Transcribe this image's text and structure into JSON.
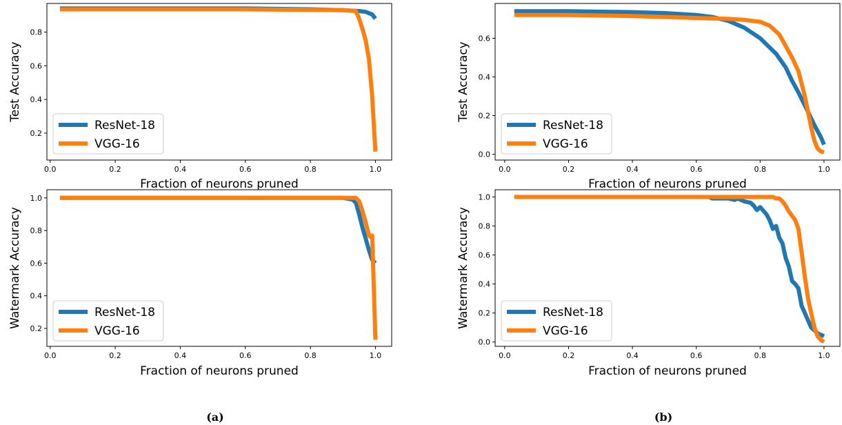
{
  "colors": {
    "resnet": "#1f77b4",
    "vgg": "#ff7f0e",
    "axis": "#000000"
  },
  "captions": [
    "(a)",
    "(b)"
  ],
  "chart_data": [
    {
      "type": "line",
      "xlabel": "Fraction of neurons pruned",
      "ylabel": "Test Accuracy",
      "xlim": [
        -0.01,
        1.05
      ],
      "ylim": [
        0.04,
        0.97
      ],
      "xticks": [
        0.0,
        0.2,
        0.4,
        0.6,
        0.8,
        1.0
      ],
      "xtick_labels": [
        "0.0",
        "0.2",
        "0.4",
        "0.6",
        "0.8",
        "1.0"
      ],
      "yticks": [
        0.2,
        0.4,
        0.6,
        0.8
      ],
      "ytick_labels": [
        "0.2",
        "0.4",
        "0.6",
        "0.8"
      ],
      "legend": {
        "position": "lower-left"
      },
      "series": [
        {
          "name": "ResNet-18",
          "x": [
            0.03,
            0.2,
            0.4,
            0.6,
            0.8,
            0.9,
            0.95,
            0.97,
            0.99,
            1.0
          ],
          "y": [
            0.94,
            0.94,
            0.94,
            0.94,
            0.935,
            0.93,
            0.925,
            0.92,
            0.905,
            0.88
          ]
        },
        {
          "name": "VGG-16",
          "x": [
            0.03,
            0.2,
            0.4,
            0.6,
            0.8,
            0.9,
            0.94,
            0.95,
            0.96,
            0.97,
            0.98,
            0.99,
            0.995,
            1.0
          ],
          "y": [
            0.935,
            0.935,
            0.935,
            0.935,
            0.932,
            0.93,
            0.925,
            0.88,
            0.82,
            0.75,
            0.64,
            0.42,
            0.25,
            0.09
          ]
        }
      ]
    },
    {
      "type": "line",
      "xlabel": "Fraction of neurons pruned",
      "ylabel": "Test Accuracy",
      "xlim": [
        -0.03,
        1.05
      ],
      "ylim": [
        -0.03,
        0.78
      ],
      "xticks": [
        0.0,
        0.2,
        0.4,
        0.6,
        0.8,
        1.0
      ],
      "xtick_labels": [
        "0.0",
        "0.2",
        "0.4",
        "0.6",
        "0.8",
        "1.0"
      ],
      "yticks": [
        0.0,
        0.2,
        0.4,
        0.6
      ],
      "ytick_labels": [
        "0.0",
        "0.2",
        "0.4",
        "0.6"
      ],
      "legend": {
        "position": "lower-left"
      },
      "series": [
        {
          "name": "ResNet-18",
          "x": [
            0.03,
            0.2,
            0.4,
            0.5,
            0.6,
            0.65,
            0.7,
            0.75,
            0.8,
            0.85,
            0.88,
            0.9,
            0.92,
            0.95,
            0.97,
            0.99,
            1.0
          ],
          "y": [
            0.74,
            0.74,
            0.735,
            0.73,
            0.72,
            0.71,
            0.69,
            0.655,
            0.6,
            0.52,
            0.45,
            0.38,
            0.32,
            0.22,
            0.15,
            0.09,
            0.05
          ]
        },
        {
          "name": "VGG-16",
          "x": [
            0.03,
            0.2,
            0.4,
            0.6,
            0.7,
            0.75,
            0.8,
            0.83,
            0.86,
            0.9,
            0.92,
            0.94,
            0.95,
            0.96,
            0.97,
            0.98,
            0.99,
            1.0
          ],
          "y": [
            0.72,
            0.72,
            0.715,
            0.705,
            0.7,
            0.695,
            0.685,
            0.665,
            0.62,
            0.5,
            0.43,
            0.3,
            0.22,
            0.14,
            0.07,
            0.03,
            0.015,
            0.01
          ]
        }
      ]
    },
    {
      "type": "line",
      "xlabel": "Fraction of neurons pruned",
      "ylabel": "Watermark Accuracy",
      "xlim": [
        -0.01,
        1.05
      ],
      "ylim": [
        0.09,
        1.05
      ],
      "xticks": [
        0.0,
        0.2,
        0.4,
        0.6,
        0.8,
        1.0
      ],
      "xtick_labels": [
        "0.0",
        "0.2",
        "0.4",
        "0.6",
        "0.8",
        "1.0"
      ],
      "yticks": [
        0.2,
        0.4,
        0.6,
        0.8,
        1.0
      ],
      "ytick_labels": [
        "0.2",
        "0.4",
        "0.6",
        "0.8",
        "1.0"
      ],
      "legend": {
        "position": "lower-left"
      },
      "series": [
        {
          "name": "ResNet-18",
          "x": [
            0.03,
            0.2,
            0.4,
            0.6,
            0.8,
            0.9,
            0.93,
            0.94,
            0.95,
            0.96,
            0.97,
            0.98,
            0.985,
            0.99,
            1.0
          ],
          "y": [
            1.0,
            1.0,
            1.0,
            1.0,
            1.0,
            1.0,
            0.99,
            0.97,
            0.9,
            0.82,
            0.75,
            0.68,
            0.65,
            0.62,
            0.6
          ]
        },
        {
          "name": "VGG-16",
          "x": [
            0.03,
            0.2,
            0.4,
            0.6,
            0.8,
            0.9,
            0.94,
            0.95,
            0.96,
            0.97,
            0.98,
            0.985,
            0.99,
            0.995,
            1.0
          ],
          "y": [
            1.0,
            1.0,
            1.0,
            1.0,
            1.0,
            1.0,
            1.0,
            0.98,
            0.92,
            0.85,
            0.77,
            0.76,
            0.77,
            0.45,
            0.13
          ]
        }
      ]
    },
    {
      "type": "line",
      "xlabel": "Fraction of neurons pruned",
      "ylabel": "Watermark Accuracy",
      "xlim": [
        -0.03,
        1.05
      ],
      "ylim": [
        -0.03,
        1.05
      ],
      "xticks": [
        0.0,
        0.2,
        0.4,
        0.6,
        0.8,
        1.0
      ],
      "xtick_labels": [
        "0.0",
        "0.2",
        "0.4",
        "0.6",
        "0.8",
        "1.0"
      ],
      "yticks": [
        0.0,
        0.2,
        0.4,
        0.6,
        0.8,
        1.0
      ],
      "ytick_labels": [
        "0.0",
        "0.2",
        "0.4",
        "0.6",
        "0.8",
        "1.0"
      ],
      "legend": {
        "position": "lower-left"
      },
      "series": [
        {
          "name": "ResNet-18",
          "x": [
            0.03,
            0.2,
            0.4,
            0.6,
            0.64,
            0.65,
            0.7,
            0.72,
            0.73,
            0.75,
            0.77,
            0.78,
            0.79,
            0.8,
            0.82,
            0.83,
            0.84,
            0.85,
            0.86,
            0.87,
            0.88,
            0.89,
            0.9,
            0.91,
            0.92,
            0.93,
            0.94,
            0.95,
            0.96,
            0.97,
            0.98,
            0.99,
            1.0
          ],
          "y": [
            1.0,
            1.0,
            1.0,
            1.0,
            1.0,
            0.99,
            0.99,
            0.98,
            0.99,
            0.97,
            0.96,
            0.94,
            0.91,
            0.93,
            0.88,
            0.84,
            0.78,
            0.8,
            0.72,
            0.68,
            0.58,
            0.52,
            0.42,
            0.4,
            0.37,
            0.25,
            0.2,
            0.15,
            0.1,
            0.08,
            0.06,
            0.05,
            0.04
          ]
        },
        {
          "name": "VGG-16",
          "x": [
            0.03,
            0.2,
            0.4,
            0.6,
            0.8,
            0.82,
            0.84,
            0.85,
            0.86,
            0.87,
            0.88,
            0.89,
            0.9,
            0.91,
            0.92,
            0.93,
            0.94,
            0.95,
            0.96,
            0.97,
            0.98,
            0.99,
            1.0
          ],
          "y": [
            1.0,
            1.0,
            1.0,
            1.0,
            1.0,
            1.0,
            1.0,
            0.99,
            0.99,
            0.97,
            0.94,
            0.9,
            0.87,
            0.84,
            0.78,
            0.62,
            0.45,
            0.3,
            0.2,
            0.1,
            0.04,
            0.015,
            0.0
          ]
        }
      ]
    }
  ]
}
